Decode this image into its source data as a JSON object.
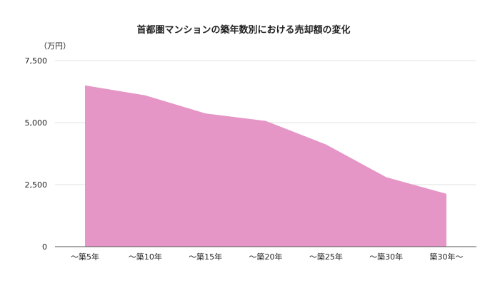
{
  "chart_data": {
    "type": "area",
    "title": "首都圏マンションの築年数別における売却額の変化",
    "unit_label": "（万円）",
    "categories": [
      "～築5年",
      "～築10年",
      "～築15年",
      "～築20年",
      "～築25年",
      "～築30年",
      "築30年～"
    ],
    "values": [
      6500,
      6100,
      5370,
      5070,
      4120,
      2800,
      2130
    ],
    "ylim": [
      0,
      7500
    ],
    "yticks": [
      0,
      2500,
      5000,
      7500
    ],
    "ytick_labels": [
      "0",
      "2,500",
      "5,000",
      "7,500"
    ],
    "grid": true,
    "legend": "none",
    "colors": {
      "area": "#e596c6",
      "grid": "#e0e0e0",
      "axis": "#555555"
    }
  }
}
